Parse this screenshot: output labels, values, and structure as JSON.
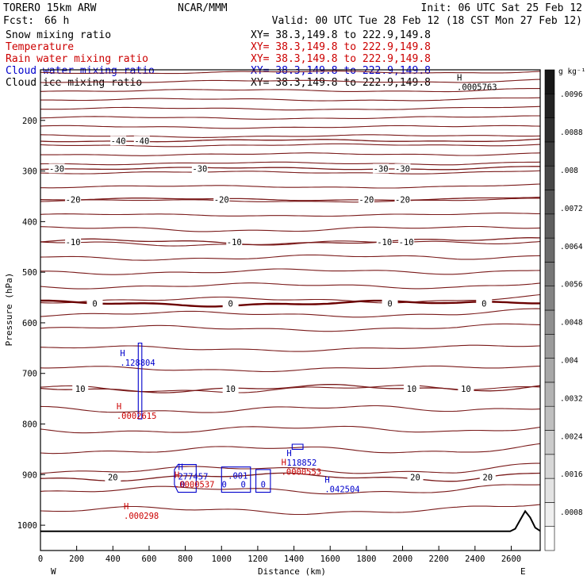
{
  "header": {
    "model": "TORERO  15km ARW",
    "center": "NCAR/MMM",
    "init": "Init: 06 UTC Sat 25 Feb 12",
    "fcst_label": "Fcst:",
    "fcst_value": "66 h",
    "valid": "Valid: 00 UTC Tue 28 Feb 12 (18 CST Mon 27 Feb 12)"
  },
  "fields": [
    {
      "name": "Snow mixing ratio",
      "color": "#000000",
      "xy": "XY=  38.3,149.8 to 222.9,149.8"
    },
    {
      "name": "Temperature",
      "color": "#cc0000",
      "xy": "XY=  38.3,149.8 to 222.9,149.8"
    },
    {
      "name": "Rain water mixing ratio",
      "color": "#cc0000",
      "xy": "XY=  38.3,149.8 to 222.9,149.8"
    },
    {
      "name": "Cloud water mixing ratio",
      "color": "#0000cc",
      "xy": "XY=  38.3,149.8 to 222.9,149.8"
    },
    {
      "name": "Cloud ice mixing ratio",
      "color": "#000000",
      "xy": "XY=  38.3,149.8 to 222.9,149.8"
    }
  ],
  "chart_data": {
    "type": "contour-cross-section",
    "xlabel": "Distance (km)",
    "ylabel": "Pressure (hPa)",
    "xlim": [
      0,
      2760
    ],
    "ylim": [
      1050,
      100
    ],
    "x_ticks": [
      0,
      200,
      400,
      600,
      800,
      1000,
      1200,
      1400,
      1600,
      1800,
      2000,
      2200,
      2400,
      2600
    ],
    "y_ticks": [
      200,
      300,
      400,
      500,
      600,
      700,
      800,
      900,
      1000
    ],
    "x_end_labels": {
      "left": "W",
      "right": "E"
    },
    "colorbar": {
      "unit": "g kg⁻¹",
      "ticks": [
        ".0008",
        ".0016",
        ".0024",
        ".0032",
        ".004",
        ".0048",
        ".0056",
        ".0064",
        ".0072",
        ".008",
        ".0088",
        ".0096"
      ],
      "colors": [
        "#ffffff",
        "#efefef",
        "#e3e3e3",
        "#d7d7d7",
        "#cbcbcb",
        "#bfbfbf",
        "#b3b3b3",
        "#a7a7a7",
        "#9b9b9b",
        "#8f8f8f",
        "#838383",
        "#777777",
        "#6b6b6b",
        "#5f5f5f",
        "#535353",
        "#474747",
        "#3b3b3b",
        "#2f2f2f",
        "#232323",
        "#171717"
      ]
    },
    "temperature_colors": {
      "line": "#7a1a1a",
      "zero": "#6b0000"
    },
    "temperature_isotherms": [
      {
        "label": "-40",
        "p": 240,
        "label_x": [
          430,
          560
        ]
      },
      {
        "label": "-30",
        "p": 295,
        "label_x": [
          90,
          880,
          1880,
          2000
        ]
      },
      {
        "label": "-20",
        "p": 356,
        "label_x": [
          180,
          1000,
          1800,
          2000
        ]
      },
      {
        "label": "-10",
        "p": 440,
        "label_x": [
          180,
          1070,
          1900,
          2020
        ]
      },
      {
        "label": "0",
        "p": 562,
        "label_x": [
          300,
          1050,
          1930,
          2450
        ]
      },
      {
        "label": "10",
        "p": 730,
        "label_x": [
          220,
          1050,
          2050,
          2350
        ]
      },
      {
        "label": "20",
        "p": 905,
        "label_x": [
          400,
          2070,
          2470
        ]
      }
    ],
    "maxima_labels": [
      {
        "mark": "H",
        "value": ".0005763",
        "x": 2300,
        "p": 140,
        "color": "#000000"
      },
      {
        "mark": "H",
        "value": ".128804",
        "x": 440,
        "p": 685,
        "color": "#0000cc"
      },
      {
        "mark": "H",
        "value": ".0002615",
        "x": 420,
        "p": 790,
        "color": "#cc0000"
      },
      {
        "mark": "H",
        "value": "277457",
        "x": 760,
        "p": 910,
        "color": "#0000cc"
      },
      {
        "mark": "H",
        "value": ".0000537",
        "x": 740,
        "p": 925,
        "color": "#cc0000"
      },
      {
        "mark": "H",
        "value": "118852",
        "x": 1360,
        "p": 882,
        "color": "#0000cc"
      },
      {
        "mark": "H",
        "value": ".0000553",
        "x": 1330,
        "p": 900,
        "color": "#cc0000"
      },
      {
        "mark": "H",
        "value": ".042504",
        "x": 1570,
        "p": 935,
        "color": "#0000cc"
      },
      {
        "mark": "H",
        "value": ".000298",
        "x": 460,
        "p": 987,
        "color": "#cc0000"
      }
    ],
    "cloud_contour_labels": [
      {
        "label": ".001",
        "x": 1090,
        "p": 908
      },
      {
        "label": "0",
        "x": 785,
        "p": 925
      },
      {
        "label": "0",
        "x": 1015,
        "p": 925
      },
      {
        "label": "0",
        "x": 1120,
        "p": 925
      },
      {
        "label": "0",
        "x": 1230,
        "p": 925
      }
    ]
  }
}
